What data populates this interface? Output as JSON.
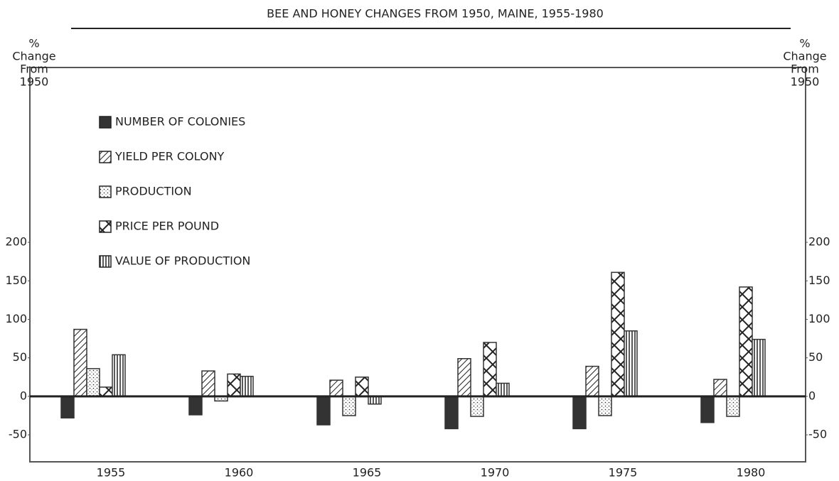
{
  "chart_data": {
    "type": "bar",
    "title": "BEE AND HONEY CHANGES FROM 1950, MAINE, 1955-1980",
    "y_label": [
      "%",
      "Change",
      "From",
      "1950"
    ],
    "y2_label": [
      "%",
      "Change",
      "From",
      "1950"
    ],
    "categories": [
      "1955",
      "1960",
      "1965",
      "1970",
      "1975",
      "1980"
    ],
    "series": [
      {
        "name": "NUMBER OF COLONIES",
        "color": "#333333",
        "values": [
          -28,
          -24,
          -37,
          -42,
          -42,
          -34
        ]
      },
      {
        "name": "YIELD PER COLONY",
        "color": "#333333",
        "values": [
          87,
          33,
          21,
          49,
          39,
          22
        ]
      },
      {
        "name": "PRODUCTION",
        "color": "#333333",
        "values": [
          36,
          -6,
          -25,
          -26,
          -25,
          -26
        ]
      },
      {
        "name": "PRICE PER POUND",
        "color": "#333333",
        "values": [
          12,
          29,
          25,
          70,
          161,
          142
        ]
      },
      {
        "name": "VALUE OF PRODUCTION",
        "color": "#333333",
        "values": [
          54,
          26,
          -10,
          17,
          85,
          74
        ]
      }
    ],
    "ylim": [
      -85,
      427
    ],
    "yticks": [
      -50,
      0,
      50,
      100,
      150,
      200
    ],
    "y2lim": [
      -85,
      427
    ],
    "y2ticks": [
      -50,
      0,
      50,
      100,
      150,
      200
    ]
  }
}
